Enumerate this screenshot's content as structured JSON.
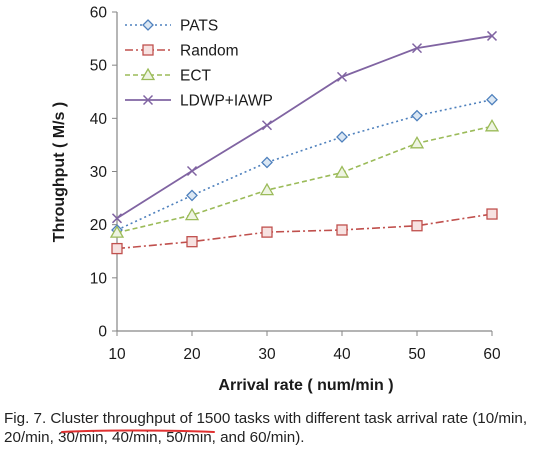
{
  "chart_data": {
    "type": "line",
    "xlabel": "Arrival rate ( num/min )",
    "ylabel": "Throughput ( M/s )",
    "x": [
      10,
      20,
      30,
      40,
      50,
      60
    ],
    "xlim": [
      10,
      60
    ],
    "ylim": [
      0,
      60
    ],
    "xticks": [
      "10",
      "20",
      "30",
      "40",
      "50",
      "60"
    ],
    "yticks": [
      "0",
      "10",
      "20",
      "30",
      "40",
      "50",
      "60"
    ],
    "grid": false,
    "legend_position": "top-left",
    "series": [
      {
        "name": "PATS",
        "values": [
          19.0,
          25.5,
          31.7,
          36.5,
          40.5,
          43.5
        ],
        "color": "#4f81bd",
        "marker": "diamond",
        "dash": "dotted"
      },
      {
        "name": "Random",
        "values": [
          15.5,
          16.8,
          18.6,
          19.0,
          19.8,
          22.0
        ],
        "color": "#c0504d",
        "marker": "square",
        "dash": "dashdot"
      },
      {
        "name": "ECT",
        "values": [
          18.5,
          21.8,
          26.5,
          29.8,
          35.3,
          38.5
        ],
        "color": "#9bbb59",
        "marker": "triangle",
        "dash": "dashed"
      },
      {
        "name": "LDWP+IAWP",
        "values": [
          21.2,
          30.1,
          38.7,
          47.8,
          53.2,
          55.5
        ],
        "color": "#8064a2",
        "marker": "cross",
        "dash": "solid"
      }
    ]
  },
  "caption": "Fig. 7. Cluster throughput of 1500 tasks with different task arrival rate (10/min, 20/min, 30/min, 40/min, 50/min, and 60/min).",
  "annotation": {
    "color": "#e03030"
  }
}
